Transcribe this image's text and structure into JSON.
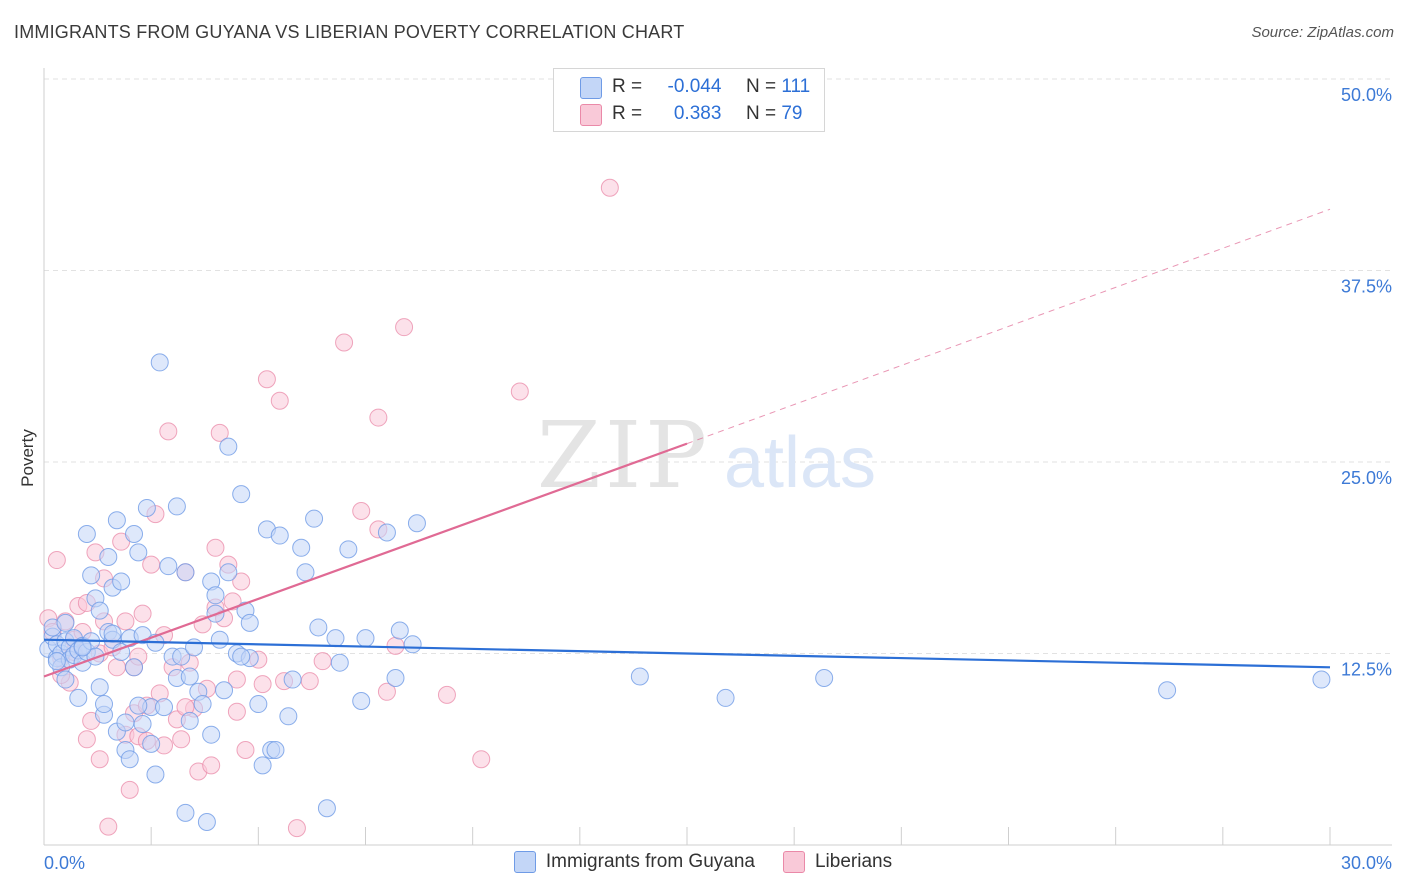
{
  "title": "IMMIGRANTS FROM GUYANA VS LIBERIAN POVERTY CORRELATION CHART",
  "source": "Source: ZipAtlas.com",
  "watermark": {
    "zip": "ZIP",
    "atlas": "atlas"
  },
  "legend": {
    "series1": {
      "r_label": "R =",
      "r_value": "-0.044",
      "n_label": "N =",
      "n_value": "111"
    },
    "series2": {
      "r_label": "R =",
      "r_value": "0.383",
      "n_label": "N =",
      "n_value": "79"
    }
  },
  "bottom_legend": {
    "series1": "Immigrants from Guyana",
    "series2": "Liberians"
  },
  "colors": {
    "blue_fill": "#c3d6f7",
    "blue_stroke": "#6f9be6",
    "blue_line": "#2c6fd6",
    "pink_fill": "#f9c9d8",
    "pink_stroke": "#ea89a8",
    "pink_line": "#e06a94",
    "axis_text": "#3d7ad6"
  },
  "chart_data": {
    "type": "scatter",
    "title": "IMMIGRANTS FROM GUYANA VS LIBERIAN POVERTY CORRELATION CHART",
    "xlabel": "",
    "ylabel": "Poverty",
    "xlim": [
      0,
      30
    ],
    "ylim": [
      0,
      50
    ],
    "x_tick_labels": [
      {
        "value": 0,
        "label": "0.0%"
      },
      {
        "value": 30,
        "label": "30.0%"
      }
    ],
    "y_tick_labels": [
      {
        "value": 12.5,
        "label": "12.5%"
      },
      {
        "value": 25,
        "label": "25.0%"
      },
      {
        "value": 37.5,
        "label": "37.5%"
      },
      {
        "value": 50,
        "label": "50.0%"
      }
    ],
    "series": [
      {
        "name": "Immigrants from Guyana",
        "r": -0.044,
        "n": 111,
        "trend": {
          "x": [
            0,
            30
          ],
          "y": [
            13.4,
            11.6
          ]
        },
        "points": [
          [
            0.1,
            12.8
          ],
          [
            0.2,
            13.6
          ],
          [
            0.3,
            12.2
          ],
          [
            0.3,
            13.1
          ],
          [
            0.4,
            12.5
          ],
          [
            0.4,
            11.6
          ],
          [
            0.5,
            13.3
          ],
          [
            0.5,
            10.8
          ],
          [
            0.6,
            12.9
          ],
          [
            0.6,
            12.1
          ],
          [
            0.7,
            13.5
          ],
          [
            0.7,
            12.4
          ],
          [
            0.8,
            12.7
          ],
          [
            0.8,
            9.6
          ],
          [
            0.9,
            11.9
          ],
          [
            0.9,
            13.0
          ],
          [
            1.0,
            12.6
          ],
          [
            1.0,
            20.3
          ],
          [
            1.1,
            17.6
          ],
          [
            1.1,
            13.3
          ],
          [
            1.2,
            12.3
          ],
          [
            1.2,
            16.1
          ],
          [
            1.3,
            15.3
          ],
          [
            1.3,
            10.3
          ],
          [
            1.4,
            8.5
          ],
          [
            1.4,
            9.2
          ],
          [
            1.5,
            13.9
          ],
          [
            1.5,
            18.8
          ],
          [
            1.6,
            16.8
          ],
          [
            1.6,
            13.4
          ],
          [
            1.7,
            7.4
          ],
          [
            1.7,
            21.2
          ],
          [
            1.8,
            12.6
          ],
          [
            1.8,
            17.2
          ],
          [
            1.9,
            8.0
          ],
          [
            1.9,
            6.2
          ],
          [
            2.0,
            13.5
          ],
          [
            2.0,
            5.6
          ],
          [
            2.1,
            11.6
          ],
          [
            2.1,
            20.3
          ],
          [
            2.2,
            19.1
          ],
          [
            2.3,
            7.9
          ],
          [
            2.3,
            13.7
          ],
          [
            2.4,
            22.0
          ],
          [
            2.5,
            9.0
          ],
          [
            2.5,
            6.6
          ],
          [
            2.6,
            13.2
          ],
          [
            2.6,
            4.6
          ],
          [
            2.7,
            31.5
          ],
          [
            2.8,
            9.0
          ],
          [
            2.9,
            18.2
          ],
          [
            3.0,
            12.3
          ],
          [
            3.1,
            22.1
          ],
          [
            3.1,
            10.9
          ],
          [
            3.2,
            12.3
          ],
          [
            3.3,
            17.8
          ],
          [
            3.3,
            2.1
          ],
          [
            3.4,
            8.1
          ],
          [
            3.5,
            12.9
          ],
          [
            3.6,
            10.0
          ],
          [
            3.7,
            9.2
          ],
          [
            3.8,
            1.5
          ],
          [
            3.9,
            7.2
          ],
          [
            3.9,
            17.2
          ],
          [
            4.0,
            16.3
          ],
          [
            4.1,
            13.4
          ],
          [
            4.2,
            10.1
          ],
          [
            4.3,
            17.8
          ],
          [
            4.3,
            26.0
          ],
          [
            4.5,
            12.5
          ],
          [
            4.6,
            22.9
          ],
          [
            4.7,
            15.3
          ],
          [
            4.8,
            14.5
          ],
          [
            4.8,
            12.2
          ],
          [
            5.0,
            9.2
          ],
          [
            5.1,
            5.2
          ],
          [
            5.2,
            20.6
          ],
          [
            5.3,
            6.2
          ],
          [
            5.4,
            6.2
          ],
          [
            5.5,
            20.2
          ],
          [
            5.7,
            8.4
          ],
          [
            5.8,
            10.8
          ],
          [
            6.0,
            19.4
          ],
          [
            6.1,
            17.8
          ],
          [
            6.3,
            21.3
          ],
          [
            6.4,
            14.2
          ],
          [
            6.6,
            2.4
          ],
          [
            6.9,
            11.9
          ],
          [
            7.1,
            19.3
          ],
          [
            7.4,
            9.4
          ],
          [
            7.5,
            13.5
          ],
          [
            8.0,
            20.4
          ],
          [
            8.2,
            10.9
          ],
          [
            8.3,
            14.0
          ],
          [
            8.6,
            13.1
          ],
          [
            8.7,
            21.0
          ],
          [
            13.9,
            11.0
          ],
          [
            15.9,
            9.6
          ],
          [
            18.2,
            10.9
          ],
          [
            26.2,
            10.1
          ],
          [
            29.8,
            10.8
          ],
          [
            0.2,
            14.2
          ],
          [
            0.5,
            14.5
          ],
          [
            0.9,
            12.9
          ],
          [
            1.6,
            13.8
          ],
          [
            2.2,
            9.1
          ],
          [
            3.4,
            11.0
          ],
          [
            4.0,
            15.1
          ],
          [
            4.6,
            12.3
          ],
          [
            6.8,
            13.5
          ],
          [
            0.3,
            12.0
          ]
        ]
      },
      {
        "name": "Liberians",
        "r": 0.383,
        "n": 79,
        "trend": {
          "x": [
            0,
            15
          ],
          "y": [
            11.0,
            26.2
          ]
        },
        "trend_extension": {
          "x": [
            15,
            30
          ],
          "y": [
            26.2,
            41.5
          ]
        },
        "points": [
          [
            0.1,
            14.8
          ],
          [
            0.2,
            13.9
          ],
          [
            0.3,
            18.6
          ],
          [
            0.4,
            12.2
          ],
          [
            0.5,
            14.6
          ],
          [
            0.6,
            10.6
          ],
          [
            0.7,
            13.4
          ],
          [
            0.7,
            12.6
          ],
          [
            0.8,
            15.6
          ],
          [
            0.9,
            13.9
          ],
          [
            1.0,
            6.9
          ],
          [
            1.0,
            15.8
          ],
          [
            1.1,
            8.1
          ],
          [
            1.2,
            19.1
          ],
          [
            1.3,
            12.5
          ],
          [
            1.4,
            14.6
          ],
          [
            1.4,
            17.4
          ],
          [
            1.5,
            1.2
          ],
          [
            1.6,
            12.9
          ],
          [
            1.7,
            11.6
          ],
          [
            1.8,
            19.8
          ],
          [
            1.9,
            7.2
          ],
          [
            1.9,
            14.6
          ],
          [
            2.0,
            3.6
          ],
          [
            2.1,
            8.6
          ],
          [
            2.1,
            11.6
          ],
          [
            2.2,
            7.1
          ],
          [
            2.3,
            15.1
          ],
          [
            2.4,
            6.8
          ],
          [
            2.4,
            9.1
          ],
          [
            2.5,
            18.3
          ],
          [
            2.6,
            21.6
          ],
          [
            2.7,
            9.9
          ],
          [
            2.8,
            13.7
          ],
          [
            2.8,
            6.5
          ],
          [
            2.9,
            27.0
          ],
          [
            3.0,
            11.6
          ],
          [
            3.1,
            8.2
          ],
          [
            3.2,
            6.9
          ],
          [
            3.3,
            17.8
          ],
          [
            3.4,
            11.9
          ],
          [
            3.5,
            8.9
          ],
          [
            3.6,
            4.8
          ],
          [
            3.7,
            14.4
          ],
          [
            3.8,
            10.2
          ],
          [
            3.9,
            5.2
          ],
          [
            4.0,
            19.4
          ],
          [
            4.0,
            15.5
          ],
          [
            4.1,
            26.9
          ],
          [
            4.2,
            14.8
          ],
          [
            4.3,
            18.3
          ],
          [
            4.4,
            15.9
          ],
          [
            4.5,
            8.7
          ],
          [
            4.6,
            17.2
          ],
          [
            4.7,
            6.2
          ],
          [
            5.0,
            12.1
          ],
          [
            5.1,
            10.5
          ],
          [
            5.2,
            30.4
          ],
          [
            5.5,
            29.0
          ],
          [
            5.6,
            10.7
          ],
          [
            5.9,
            1.1
          ],
          [
            6.2,
            10.7
          ],
          [
            7.0,
            32.8
          ],
          [
            7.4,
            21.8
          ],
          [
            7.8,
            20.6
          ],
          [
            7.8,
            27.9
          ],
          [
            8.0,
            10.0
          ],
          [
            8.2,
            13.0
          ],
          [
            8.4,
            33.8
          ],
          [
            9.4,
            9.8
          ],
          [
            10.2,
            5.6
          ],
          [
            11.1,
            29.6
          ],
          [
            13.2,
            42.9
          ],
          [
            0.4,
            11.1
          ],
          [
            1.3,
            5.6
          ],
          [
            2.2,
            12.3
          ],
          [
            3.3,
            9.0
          ],
          [
            4.5,
            10.8
          ],
          [
            6.5,
            12.0
          ]
        ]
      }
    ]
  }
}
